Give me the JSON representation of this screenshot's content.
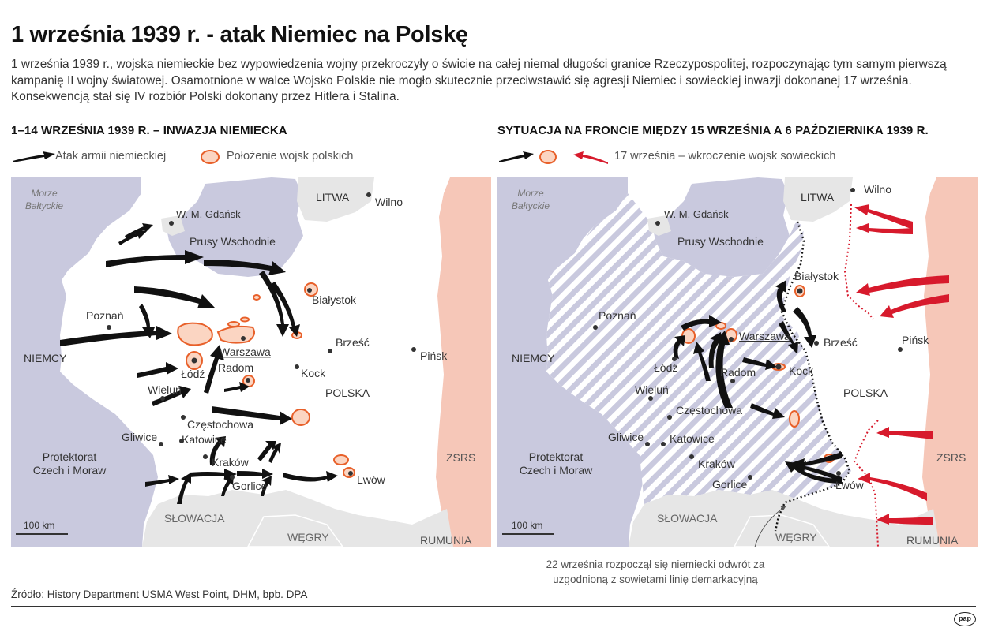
{
  "title": "1 września 1939 r. - atak Niemiec na Polskę",
  "intro": "1 września 1939 r., wojska niemieckie bez wypowiedzenia wojny przekroczyły o świcie na całej niemal długości granice Rzeczypospolitej, rozpoczynając tym samym pierwszą kampanię II wojny światowej. Osamotnione w walce Wojsko Polskie nie mogło skutecznie przeciwstawić się agresji Niemiec i sowieckiej inwazji dokonanej 17 września. Konsekwencją stał się IV rozbiór Polski dokonany przez Hitlera i Stalina.",
  "colors": {
    "german_land": "#c9c9de",
    "sea": "#c9c9de",
    "neighbor_land": "#e6e6e6",
    "soviet_land": "#f6c7b8",
    "polish_forces_fill": "#fbd5c2",
    "polish_forces_stroke": "#e8602a",
    "german_attack": "#111111",
    "soviet_attack": "#d71a2c",
    "hatch": "#c9c9de"
  },
  "left_panel": {
    "heading": "1–14 WRZEŚNIA 1939 R. – INWAZJA NIEMIECKA",
    "legend": {
      "german_attack": "Atak armii niemieckiej",
      "polish_forces": "Położenie wojsk polskich"
    },
    "labels": {
      "sea": [
        "Morze",
        "Bałtyckie"
      ],
      "danzig": "W. M. Gdańsk",
      "east_prussia": "Prusy Wschodnie",
      "lithuania": "LITWA",
      "wilno": "Wilno",
      "bialystok": "Białystok",
      "poznan": "Poznań",
      "warszawa": "Warszawa",
      "brzesc": "Brześć",
      "pinsk": "Pińsk",
      "germany": "NIEMCY",
      "lodz": "Łódź",
      "radom": "Radom",
      "kock": "Kock",
      "polska": "POLSKA",
      "wielun": "Wieluń",
      "czestochowa": "Częstochowa",
      "gliwice": "Gliwice",
      "katowice": "Katowice",
      "protectorate": [
        "Protektorat",
        "Czech i Moraw"
      ],
      "krakow": "Kraków",
      "lwow": "Lwów",
      "gorlice": "Gorlice",
      "zsrs": "ZSRS",
      "slovakia": "SŁOWACJA",
      "hungary": "WĘGRY",
      "romania": "RUMUNIA",
      "scale": "100 km"
    }
  },
  "right_panel": {
    "heading": "SYTUACJA NA FRONCIE MIĘDZY 15 WRZEŚNIA A 6 PAŹDZIERNIKA 1939 R.",
    "legend": {
      "soviet_invasion": "17 września –  wkroczenie wojsk sowieckich"
    },
    "labels": {
      "sea": [
        "Morze",
        "Bałtyckie"
      ],
      "danzig": "W. M. Gdańsk",
      "east_prussia": "Prusy Wschodnie",
      "lithuania": "LITWA",
      "wilno": "Wilno",
      "bialystok": "Białystok",
      "poznan": "Poznań",
      "warszawa": "Warszawa",
      "brzesc": "Brześć",
      "pinsk": "Pińsk",
      "germany": "NIEMCY",
      "lodz": "Łódź",
      "radom": "Radom",
      "kock": "Kock",
      "polska": "POLSKA",
      "wielun": "Wieluń",
      "czestochowa": "Częstochowa",
      "gliwice": "Gliwice",
      "katowice": "Katowice",
      "protectorate": [
        "Protektorat",
        "Czech i Moraw"
      ],
      "krakow": "Kraków",
      "lwow": "Lwów",
      "gorlice": "Gorlice",
      "zsrs": "ZSRS",
      "slovakia": "SŁOWACJA",
      "hungary": "WĘGRY",
      "romania": "RUMUNIA",
      "scale": "100 km"
    },
    "annotation": "22 września rozpoczął się niemiecki odwrót za uzgodnioną z sowietami linię demarkacyjną"
  },
  "source": "Źródło: History Department USMA West Point, DHM, bpb. DPA",
  "logo_text": "pap"
}
